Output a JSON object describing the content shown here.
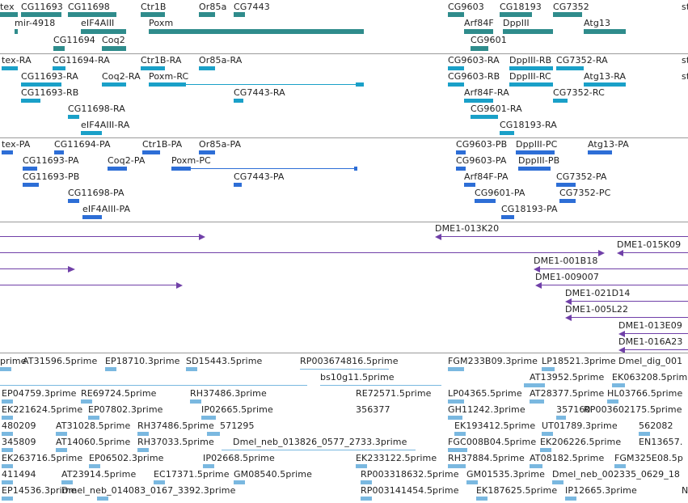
{
  "colors": {
    "gene": "#2f8c8c",
    "transcript": "#1aa0c8",
    "protein": "#2d6ed6",
    "clone": "#7040a8",
    "est": "#7ab8e0",
    "separator": "#9a9a9a"
  },
  "tracks": [
    {
      "name": "gene-track",
      "color": "gene",
      "labels": [
        "tex",
        "CG11693",
        "CG11698",
        "Ctr1B",
        "Or85a",
        "CG7443",
        "CG9603",
        "CG18193",
        "CG7352",
        "st",
        "mir-4918",
        "eIF4AIII",
        "Poxm",
        "Arf84F",
        "DppIII",
        "Atg13",
        "CG11694",
        "Coq2",
        "CG9601"
      ]
    },
    {
      "name": "transcript-track",
      "color": "transcript",
      "labels": [
        "tex-RA",
        "CG11694-RA",
        "Ctr1B-RA",
        "Or85a-RA",
        "CG9603-RA",
        "DppIII-RB",
        "CG7352-RA",
        "st",
        "CG11693-RA",
        "Coq2-RA",
        "Poxm-RC",
        "CG9603-RB",
        "DppIII-RC",
        "Atg13-RA",
        "st",
        "CG11693-RB",
        "CG7443-RA",
        "Arf84F-RA",
        "CG7352-RC",
        "CG11698-RA",
        "CG9601-RA",
        "eIF4AIII-RA",
        "CG18193-RA"
      ]
    },
    {
      "name": "protein-track",
      "color": "protein",
      "labels": [
        "tex-PA",
        "CG11694-PA",
        "Ctr1B-PA",
        "Or85a-PA",
        "CG9603-PB",
        "DppIII-PC",
        "Atg13-PA",
        "CG11693-PA",
        "Coq2-PA",
        "Poxm-PC",
        "CG9603-PA",
        "DppIII-PB",
        "CG11693-PB",
        "CG7443-PA",
        "Arf84F-PA",
        "CG7352-PA",
        "CG11698-PA",
        "CG9601-PA",
        "CG7352-PC",
        "eIF4AIII-PA",
        "CG18193-PA"
      ]
    },
    {
      "name": "clone-track",
      "color": "clone",
      "labels": [
        "DME1-013K20",
        "DME1-015K09",
        "DME1-001B18",
        "DME1-009007",
        "DME1-021D14",
        "DME1-005L22",
        "DME1-013E09",
        "DME1-016A23"
      ]
    },
    {
      "name": "est-track",
      "color": "est",
      "labels": [
        "prime",
        "AT31596.5prime",
        "EP18710.3prime",
        "SD15443.5prime",
        "RP003674816.5prime",
        "FGM233B09.3prime",
        "LP18521.3prime",
        "Dmel_dig_001",
        "bs10g11.5prime",
        "AT13952.5prime",
        "EK063208.5prime",
        "EP04759.3prime",
        "RE69724.5prime",
        "RH37486.3prime",
        "RE72571.5prime",
        "LP04365.5prime",
        "AT28377.5prime",
        "HL03766.5prime",
        "EK221624.5prime",
        "EP07802.3prime",
        "IP02665.5prime",
        "356377",
        "GH11242.3prime",
        "357160",
        "RP003602175.5prime",
        "480209",
        "AT31028.5prime",
        "RH37486.5prime",
        "571295",
        "EK193412.5prime",
        "UT01789.3prime",
        "562082",
        "345809",
        "AT14060.5prime",
        "RH37033.5prime",
        "Dmel_neb_013826_0577_2733.3prime",
        "FGC008B04.5prime",
        "EK206226.5prime",
        "EN13657.",
        "EK263716.5prime",
        "EP06502.3prime",
        "IP02668.5prime",
        "EK233122.5prime",
        "RH37884.5prime",
        "AT08182.5prime",
        "FGM325E08.5p",
        "411494",
        "AT23914.5prime",
        "EC17371.5prime",
        "GM08540.5prime",
        "RP003318632.5prime",
        "GM01535.3prime",
        "Dmel_neb_002335_0629_18",
        "EP14536.3prime",
        "Dmel_neb_014083_0167_3392.3prime",
        "RP003141454.5prime",
        "EK187625.5prime",
        "IP12665.3prime",
        "N"
      ]
    }
  ]
}
